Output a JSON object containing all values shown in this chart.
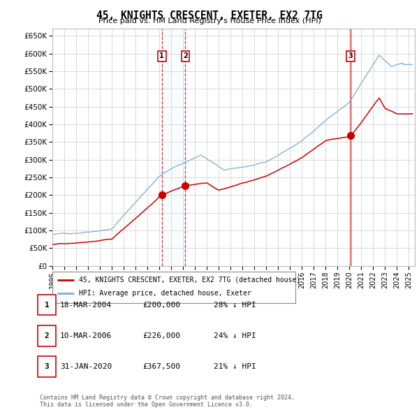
{
  "title": "45, KNIGHTS CRESCENT, EXETER, EX2 7TG",
  "subtitle": "Price paid vs. HM Land Registry's House Price Index (HPI)",
  "yticks": [
    0,
    50000,
    100000,
    150000,
    200000,
    250000,
    300000,
    350000,
    400000,
    450000,
    500000,
    550000,
    600000,
    650000
  ],
  "ylim": [
    0,
    670000
  ],
  "background_color": "#ffffff",
  "grid_color": "#cccccc",
  "hpi_color": "#7aadd4",
  "hpi_fill_color": "#ddeeff",
  "price_color": "#cc0000",
  "vline_color_dashed": "#cc0000",
  "vline_color_solid": "#cc0000",
  "sale_events": [
    {
      "date_num": 2004.21,
      "price": 200000,
      "label": "1",
      "date_str": "18-MAR-2004",
      "price_str": "£200,000",
      "vline_style": "dashed"
    },
    {
      "date_num": 2006.19,
      "price": 226000,
      "label": "2",
      "date_str": "10-MAR-2006",
      "price_str": "£226,000",
      "vline_style": "dashed"
    },
    {
      "date_num": 2020.08,
      "price": 367500,
      "label": "3",
      "date_str": "31-JAN-2020",
      "price_str": "£367,500",
      "vline_style": "solid"
    }
  ],
  "shade_between": [
    2004.21,
    2006.19
  ],
  "legend_entries": [
    {
      "label": "45, KNIGHTS CRESCENT, EXETER, EX2 7TG (detached house)",
      "color": "#cc0000"
    },
    {
      "label": "HPI: Average price, detached house, Exeter",
      "color": "#7aadd4"
    }
  ],
  "table_rows": [
    {
      "num": "1",
      "date": "18-MAR-2004",
      "price": "£200,000",
      "pct": "28% ↓ HPI"
    },
    {
      "num": "2",
      "date": "10-MAR-2006",
      "price": "£226,000",
      "pct": "24% ↓ HPI"
    },
    {
      "num": "3",
      "date": "31-JAN-2020",
      "price": "£367,500",
      "pct": "21% ↓ HPI"
    }
  ],
  "footer": "Contains HM Land Registry data © Crown copyright and database right 2024.\nThis data is licensed under the Open Government Licence v3.0.",
  "xmin": 1995.0,
  "xmax": 2025.5
}
